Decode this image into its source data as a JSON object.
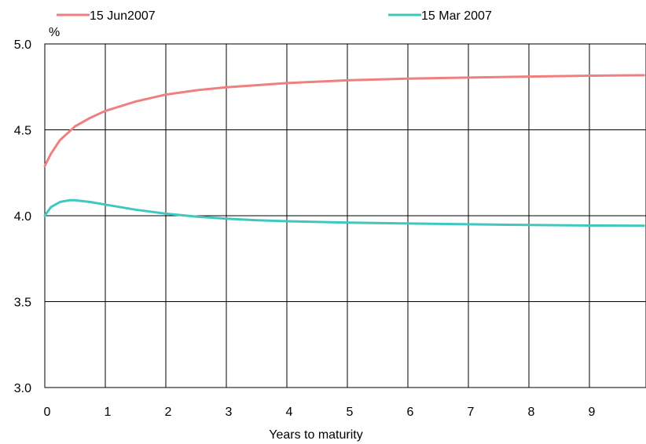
{
  "chart_data": {
    "type": "line",
    "title": "",
    "xlabel": "Years to maturity",
    "ylabel": "%",
    "xlim": [
      0,
      9.9
    ],
    "ylim": [
      3.0,
      5.0
    ],
    "x_ticks": [
      0,
      1,
      2,
      3,
      4,
      5,
      6,
      7,
      8,
      9
    ],
    "y_ticks": [
      3.0,
      3.5,
      4.0,
      4.5,
      5.0
    ],
    "x_tick_labels": [
      "0",
      "1",
      "2",
      "3",
      "4",
      "5",
      "6",
      "7",
      "8",
      "9"
    ],
    "y_tick_labels": [
      "3.0",
      "3.5",
      "4.0",
      "4.5",
      "5.0"
    ],
    "grid": true,
    "legend_position": "top",
    "series": [
      {
        "name": "15 Jun2007",
        "color": "#f08080",
        "x": [
          0,
          0.1,
          0.25,
          0.5,
          0.75,
          1,
          1.5,
          2,
          2.5,
          3,
          3.5,
          4,
          5,
          6,
          7,
          8,
          9,
          9.9
        ],
        "y": [
          4.29,
          4.36,
          4.44,
          4.52,
          4.57,
          4.61,
          4.665,
          4.705,
          4.73,
          4.748,
          4.76,
          4.772,
          4.788,
          4.798,
          4.804,
          4.81,
          4.815,
          4.818
        ]
      },
      {
        "name": "15 Mar 2007",
        "color": "#40c8c0",
        "x": [
          0,
          0.1,
          0.25,
          0.4,
          0.5,
          0.75,
          1,
          1.5,
          2,
          2.5,
          3,
          3.5,
          4,
          5,
          6,
          7,
          8,
          9,
          9.9
        ],
        "y": [
          4.0,
          4.05,
          4.08,
          4.09,
          4.09,
          4.08,
          4.065,
          4.035,
          4.012,
          3.995,
          3.983,
          3.974,
          3.968,
          3.96,
          3.955,
          3.95,
          3.946,
          3.943,
          3.942
        ]
      }
    ]
  }
}
